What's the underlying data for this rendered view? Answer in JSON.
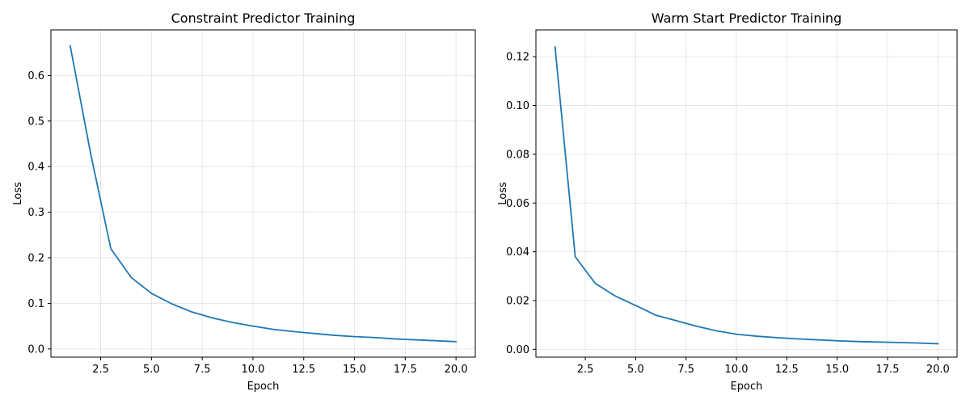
{
  "chart_data": [
    {
      "type": "line",
      "title": "Constraint Predictor Training",
      "xlabel": "Epoch",
      "ylabel": "Loss",
      "xlim": [
        0.05,
        20.95
      ],
      "ylim": [
        -0.018,
        0.7
      ],
      "xticks": [
        2.5,
        5.0,
        7.5,
        10.0,
        12.5,
        15.0,
        17.5,
        20.0
      ],
      "xtick_labels": [
        "2.5",
        "5.0",
        "7.5",
        "10.0",
        "12.5",
        "15.0",
        "17.5",
        "20.0"
      ],
      "yticks": [
        0.0,
        0.1,
        0.2,
        0.3,
        0.4,
        0.5,
        0.6
      ],
      "ytick_labels": [
        "0.0",
        "0.1",
        "0.2",
        "0.3",
        "0.4",
        "0.5",
        "0.6"
      ],
      "grid": true,
      "color": "#1f77b4",
      "x": [
        1,
        2,
        3,
        4,
        5,
        6,
        7,
        8,
        9,
        10,
        11,
        12,
        13,
        14,
        15,
        16,
        17,
        18,
        19,
        20
      ],
      "y": [
        0.665,
        0.43,
        0.22,
        0.157,
        0.122,
        0.099,
        0.081,
        0.068,
        0.058,
        0.05,
        0.043,
        0.038,
        0.034,
        0.03,
        0.027,
        0.025,
        0.022,
        0.02,
        0.018,
        0.016
      ]
    },
    {
      "type": "line",
      "title": "Warm Start Predictor Training",
      "xlabel": "Epoch",
      "ylabel": "Loss",
      "xlim": [
        0.05,
        20.95
      ],
      "ylim": [
        -0.0032,
        0.131
      ],
      "xticks": [
        2.5,
        5.0,
        7.5,
        10.0,
        12.5,
        15.0,
        17.5,
        20.0
      ],
      "xtick_labels": [
        "2.5",
        "5.0",
        "7.5",
        "10.0",
        "12.5",
        "15.0",
        "17.5",
        "20.0"
      ],
      "yticks": [
        0.0,
        0.02,
        0.04,
        0.06,
        0.08,
        0.1,
        0.12
      ],
      "ytick_labels": [
        "0.00",
        "0.02",
        "0.04",
        "0.06",
        "0.08",
        "0.10",
        "0.12"
      ],
      "grid": true,
      "color": "#1f77b4",
      "x": [
        1,
        2,
        3,
        4,
        5,
        6,
        7,
        8,
        9,
        10,
        11,
        12,
        13,
        14,
        15,
        16,
        17,
        18,
        19,
        20
      ],
      "y": [
        0.124,
        0.038,
        0.027,
        0.0218,
        0.018,
        0.014,
        0.0118,
        0.0095,
        0.0076,
        0.0062,
        0.0054,
        0.0048,
        0.0043,
        0.0039,
        0.0035,
        0.0032,
        0.003,
        0.0028,
        0.0026,
        0.0023
      ]
    }
  ]
}
